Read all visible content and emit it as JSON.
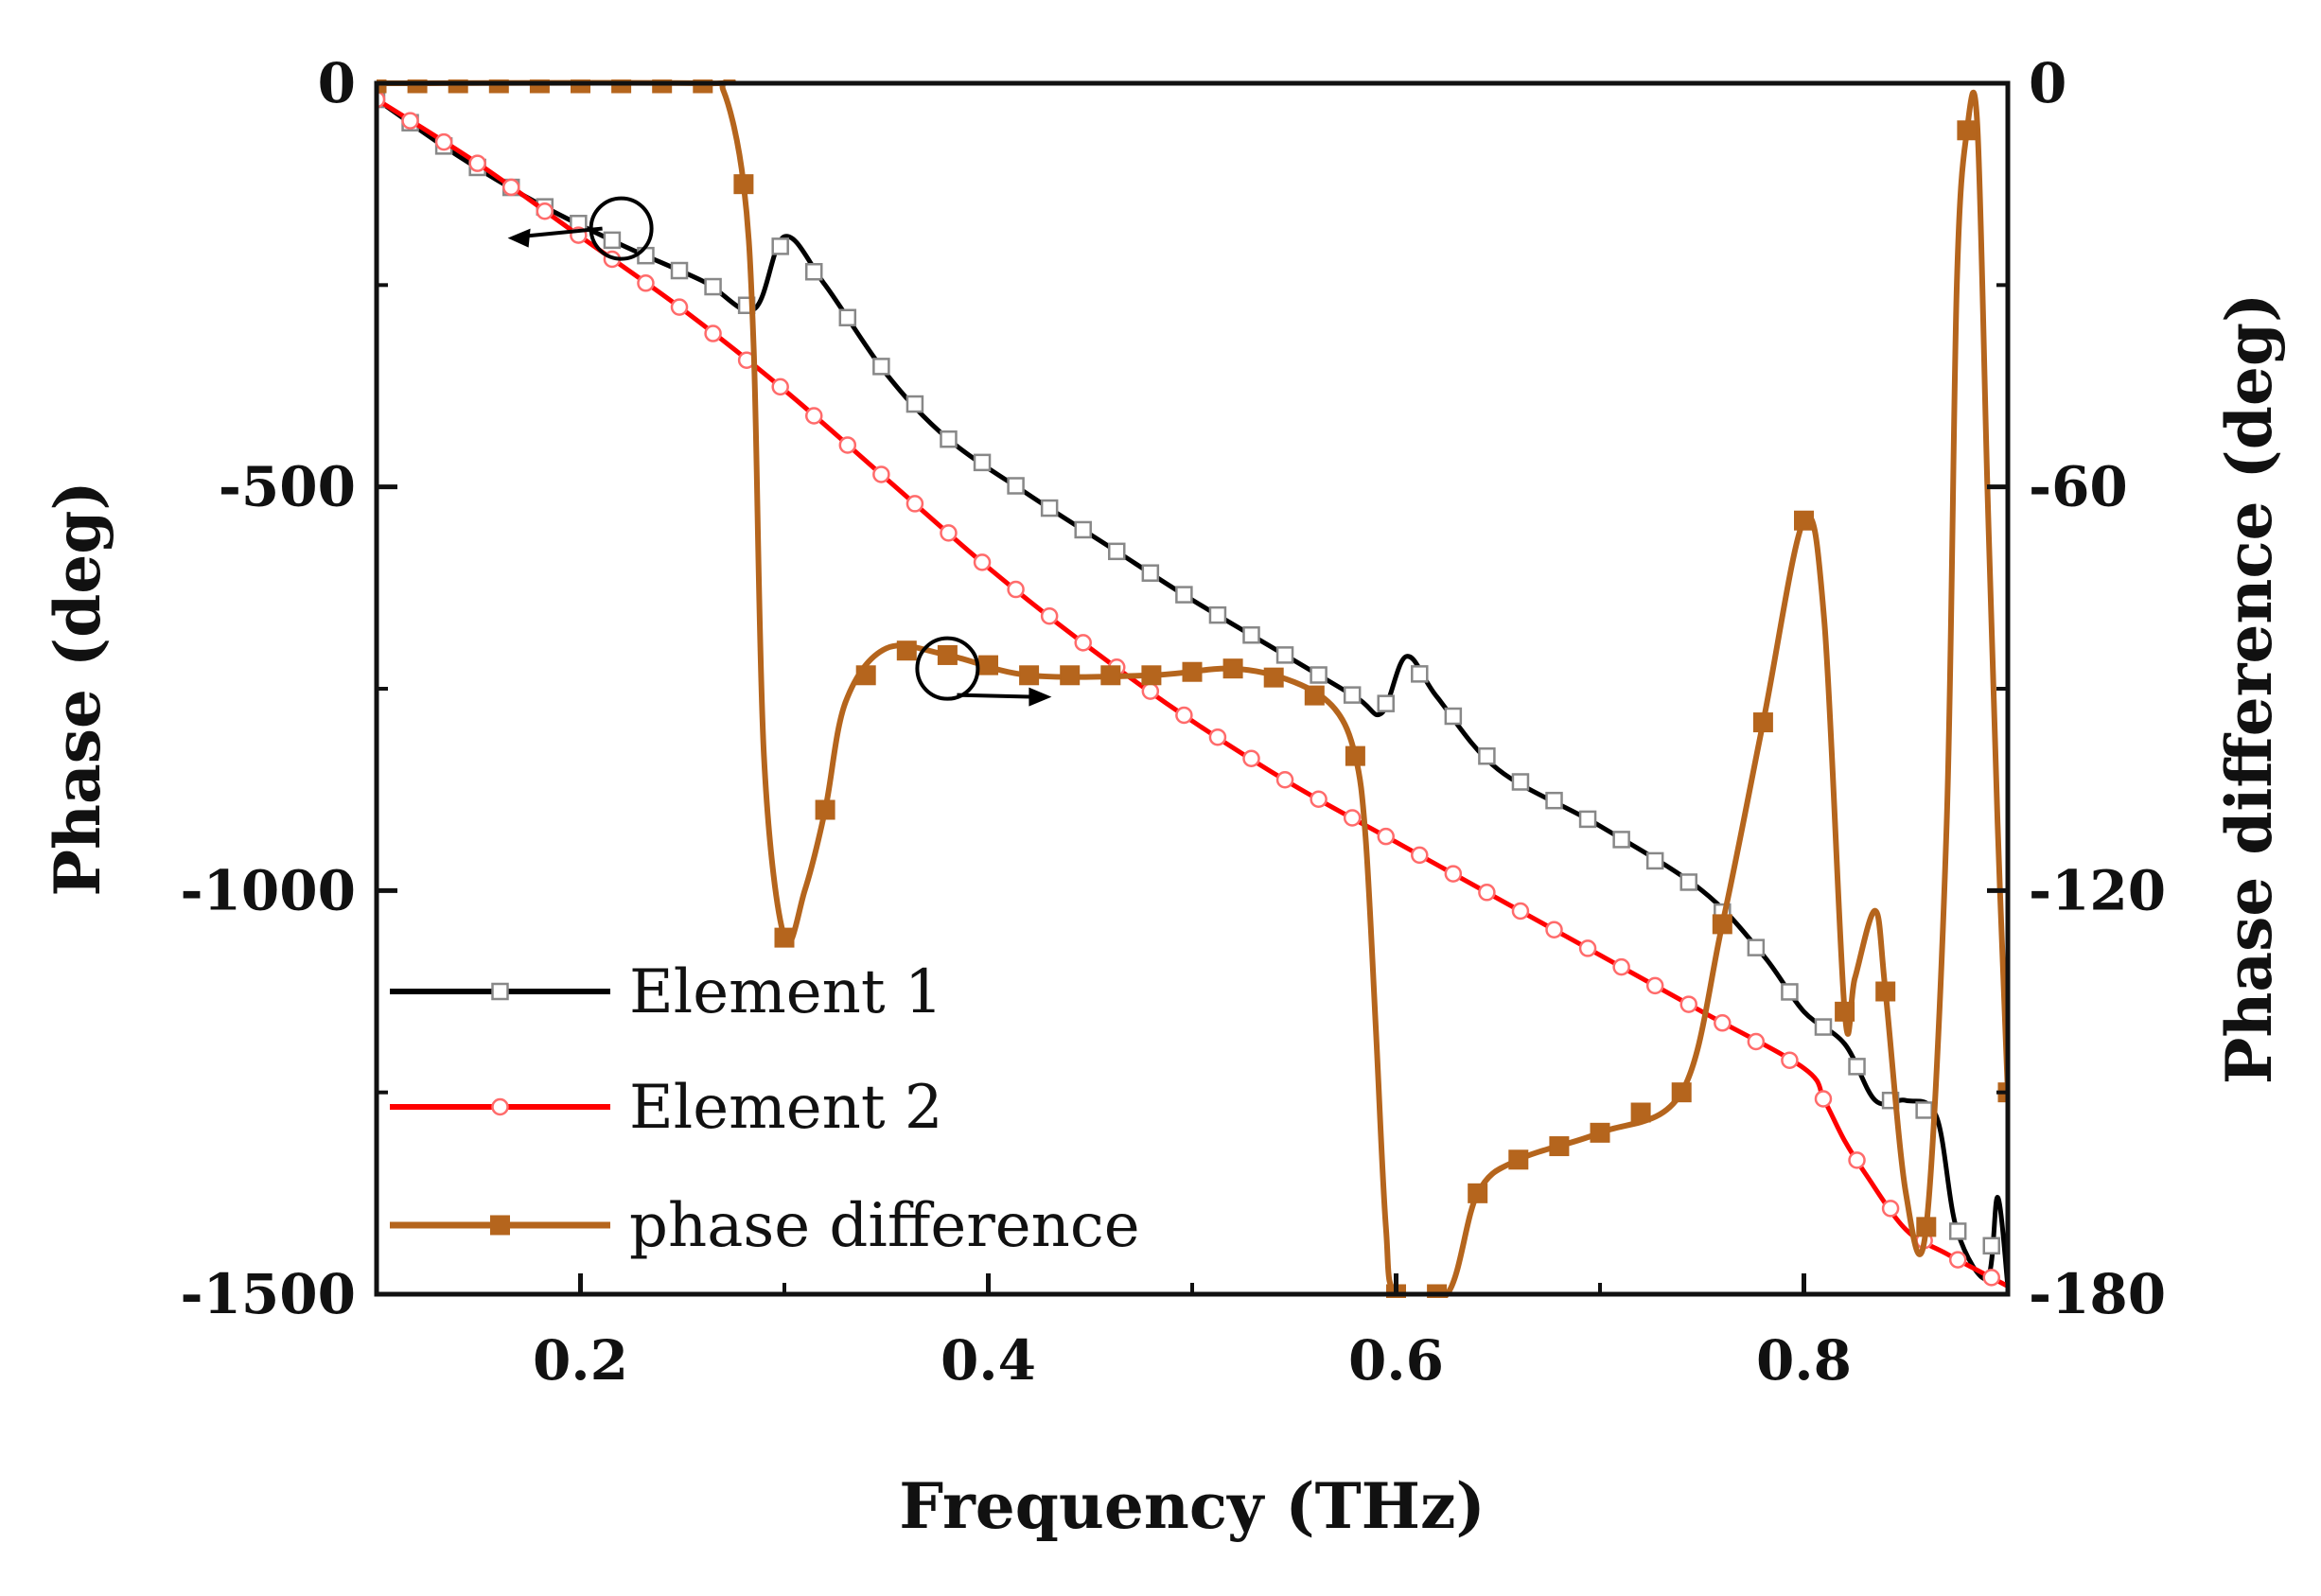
{
  "chart_data": {
    "type": "line",
    "xlabel": "Frequency (THz)",
    "ylabel": "Phase (deg)",
    "y2label": "Phase difference (deg)",
    "xlim": [
      0.1,
      0.9
    ],
    "ylim": [
      -1500,
      0
    ],
    "y2lim": [
      -180,
      0
    ],
    "xticks": [
      0.2,
      0.4,
      0.6,
      0.8
    ],
    "xtick_labels": [
      "0.2",
      "0.4",
      "0.6",
      "0.8"
    ],
    "yticks": [
      0,
      -500,
      -1000,
      -1500
    ],
    "ytick_labels": [
      "0",
      "-500",
      "-1000",
      "-1500"
    ],
    "y2ticks": [
      0,
      -60,
      -120,
      -180
    ],
    "y2tick_labels": [
      "0",
      "-60",
      "-120",
      "-180"
    ],
    "legend_position": "bottom-left",
    "annotations": [
      {
        "type": "circle-arrow",
        "x": 0.22,
        "y": -180,
        "axis": "left",
        "direction": "left"
      },
      {
        "type": "circle-arrow",
        "x": 0.38,
        "y": -87,
        "axis": "right",
        "direction": "right"
      }
    ],
    "series": [
      {
        "name": "Element 1",
        "axis": "left",
        "color": "#000000",
        "marker": "open-square",
        "x": [
          0.1,
          0.14,
          0.18,
          0.22,
          0.26,
          0.285,
          0.3,
          0.32,
          0.35,
          0.38,
          0.42,
          0.46,
          0.5,
          0.54,
          0.58,
          0.593,
          0.605,
          0.62,
          0.65,
          0.7,
          0.75,
          0.78,
          0.8,
          0.82,
          0.835,
          0.85,
          0.865,
          0.875,
          0.89,
          0.895,
          0.9
        ],
        "y": [
          -20,
          -90,
          -150,
          -200,
          -245,
          -280,
          -190,
          -250,
          -360,
          -440,
          -510,
          -575,
          -640,
          -700,
          -760,
          -780,
          -710,
          -760,
          -850,
          -920,
          -1000,
          -1080,
          -1150,
          -1190,
          -1260,
          -1260,
          -1280,
          -1420,
          -1480,
          -1380,
          -1490
        ]
      },
      {
        "name": "Element 2",
        "axis": "left",
        "color": "#ff0000",
        "marker": "open-circle",
        "x": [
          0.1,
          0.15,
          0.2,
          0.25,
          0.3,
          0.35,
          0.4,
          0.45,
          0.5,
          0.55,
          0.6,
          0.65,
          0.7,
          0.75,
          0.8,
          0.81,
          0.82,
          0.83,
          0.85,
          0.87,
          0.9
        ],
        "y": [
          -20,
          -100,
          -190,
          -280,
          -380,
          -490,
          -600,
          -700,
          -790,
          -870,
          -940,
          -1010,
          -1080,
          -1150,
          -1220,
          -1260,
          -1310,
          -1350,
          -1420,
          -1450,
          -1490
        ]
      },
      {
        "name": "phase difference",
        "axis": "right",
        "color": "#b5651d",
        "marker": "filled-square",
        "x": [
          0.1,
          0.26,
          0.27,
          0.28,
          0.285,
          0.29,
          0.3,
          0.31,
          0.32,
          0.33,
          0.35,
          0.38,
          0.42,
          0.48,
          0.52,
          0.55,
          0.57,
          0.58,
          0.585,
          0.59,
          0.595,
          0.6,
          0.625,
          0.64,
          0.66,
          0.7,
          0.74,
          0.76,
          0.78,
          0.8,
          0.81,
          0.82,
          0.825,
          0.835,
          0.84,
          0.85,
          0.86,
          0.87,
          0.875,
          0.88,
          0.885,
          0.89,
          0.895,
          0.9
        ],
        "y": [
          0,
          0,
          -1,
          -15,
          -40,
          -100,
          -127,
          -120,
          -108,
          -92,
          -84,
          -85,
          -88,
          -88,
          -87,
          -89,
          -93,
          -100,
          -112,
          -140,
          -170,
          -180,
          -180,
          -165,
          -160,
          -156,
          -150,
          -125,
          -95,
          -65,
          -80,
          -138,
          -133,
          -123,
          -135,
          -165,
          -170,
          -110,
          -30,
          -7,
          -6,
          -60,
          -110,
          -150
        ]
      }
    ]
  }
}
